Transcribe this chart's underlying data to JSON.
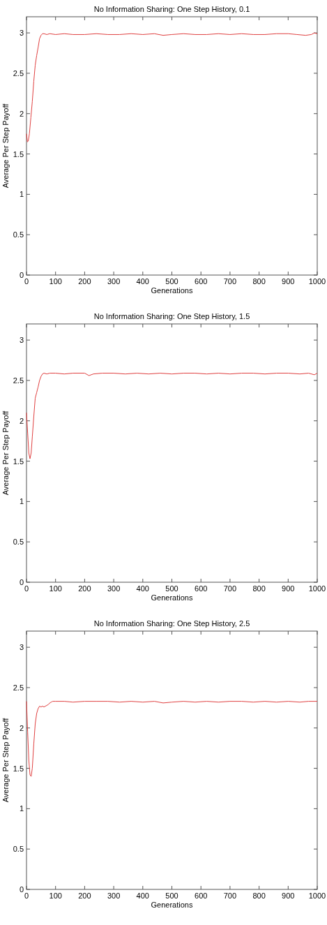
{
  "chart_data": [
    {
      "type": "line",
      "title": "No Information Sharing: One Step History, 0.1",
      "xlabel": "Generations",
      "ylabel": "Average Per Step Payoff",
      "xlim": [
        0,
        1000
      ],
      "ylim": [
        0,
        3.2
      ],
      "xticks": [
        0,
        100,
        200,
        300,
        400,
        500,
        600,
        700,
        800,
        900,
        1000
      ],
      "yticks": [
        0,
        0.5,
        1,
        1.5,
        2,
        2.5,
        3
      ],
      "grid": false,
      "marker": "none",
      "line_style": "solid",
      "series": [
        {
          "color": "#e04040",
          "x": [
            0,
            3,
            6,
            10,
            15,
            20,
            25,
            30,
            35,
            40,
            45,
            50,
            55,
            60,
            70,
            80,
            100,
            130,
            160,
            200,
            240,
            280,
            320,
            360,
            400,
            440,
            470,
            500,
            540,
            580,
            620,
            660,
            700,
            740,
            780,
            820,
            860,
            900,
            930,
            960,
            980,
            990,
            1000
          ],
          "values": [
            1.75,
            1.65,
            1.66,
            1.75,
            1.95,
            2.15,
            2.4,
            2.6,
            2.72,
            2.82,
            2.93,
            2.97,
            2.99,
            2.99,
            2.98,
            2.99,
            2.98,
            2.99,
            2.98,
            2.98,
            2.99,
            2.98,
            2.98,
            2.99,
            2.98,
            2.99,
            2.97,
            2.98,
            2.99,
            2.98,
            2.98,
            2.99,
            2.98,
            2.99,
            2.98,
            2.98,
            2.99,
            2.99,
            2.98,
            2.97,
            2.98,
            3.0,
            2.99
          ]
        }
      ]
    },
    {
      "type": "line",
      "title": "No Information Sharing: One Step History, 1.5",
      "xlabel": "Generations",
      "ylabel": "Average Per Step Payoff",
      "xlim": [
        0,
        1000
      ],
      "ylim": [
        0,
        3.2
      ],
      "xticks": [
        0,
        100,
        200,
        300,
        400,
        500,
        600,
        700,
        800,
        900,
        1000
      ],
      "yticks": [
        0,
        0.5,
        1,
        1.5,
        2,
        2.5,
        3
      ],
      "grid": false,
      "marker": "none",
      "line_style": "solid",
      "series": [
        {
          "color": "#e04040",
          "x": [
            0,
            4,
            8,
            12,
            16,
            20,
            25,
            30,
            35,
            40,
            45,
            50,
            55,
            60,
            70,
            80,
            100,
            130,
            160,
            200,
            215,
            230,
            260,
            300,
            340,
            380,
            420,
            460,
            500,
            540,
            580,
            620,
            660,
            700,
            740,
            780,
            820,
            860,
            900,
            940,
            970,
            990,
            1000
          ],
          "values": [
            2.1,
            1.85,
            1.6,
            1.53,
            1.6,
            1.8,
            2.05,
            2.28,
            2.35,
            2.42,
            2.5,
            2.55,
            2.58,
            2.59,
            2.58,
            2.59,
            2.59,
            2.58,
            2.59,
            2.59,
            2.56,
            2.58,
            2.59,
            2.59,
            2.58,
            2.59,
            2.58,
            2.59,
            2.58,
            2.59,
            2.59,
            2.58,
            2.59,
            2.58,
            2.59,
            2.59,
            2.58,
            2.59,
            2.59,
            2.58,
            2.59,
            2.57,
            2.59
          ]
        }
      ]
    },
    {
      "type": "line",
      "title": "No Information Sharing: One Step History, 2.5",
      "xlabel": "Generations",
      "ylabel": "Average Per Step Payoff",
      "xlim": [
        0,
        1000
      ],
      "ylim": [
        0,
        3.2
      ],
      "xticks": [
        0,
        100,
        200,
        300,
        400,
        500,
        600,
        700,
        800,
        900,
        1000
      ],
      "yticks": [
        0,
        0.5,
        1,
        1.5,
        2,
        2.5,
        3
      ],
      "grid": false,
      "marker": "none",
      "line_style": "solid",
      "series": [
        {
          "color": "#e04040",
          "x": [
            0,
            4,
            8,
            12,
            16,
            20,
            25,
            30,
            35,
            40,
            45,
            50,
            55,
            60,
            65,
            70,
            75,
            80,
            85,
            90,
            100,
            130,
            160,
            200,
            240,
            280,
            320,
            360,
            400,
            440,
            470,
            500,
            540,
            580,
            620,
            660,
            700,
            740,
            780,
            820,
            860,
            900,
            940,
            970,
            1000
          ],
          "values": [
            2.33,
            1.95,
            1.6,
            1.42,
            1.4,
            1.5,
            1.8,
            2.05,
            2.18,
            2.24,
            2.27,
            2.26,
            2.27,
            2.26,
            2.27,
            2.28,
            2.29,
            2.31,
            2.32,
            2.33,
            2.33,
            2.33,
            2.32,
            2.33,
            2.33,
            2.33,
            2.32,
            2.33,
            2.32,
            2.33,
            2.31,
            2.32,
            2.33,
            2.32,
            2.33,
            2.32,
            2.33,
            2.33,
            2.32,
            2.33,
            2.32,
            2.33,
            2.32,
            2.33,
            2.33
          ]
        }
      ]
    }
  ]
}
